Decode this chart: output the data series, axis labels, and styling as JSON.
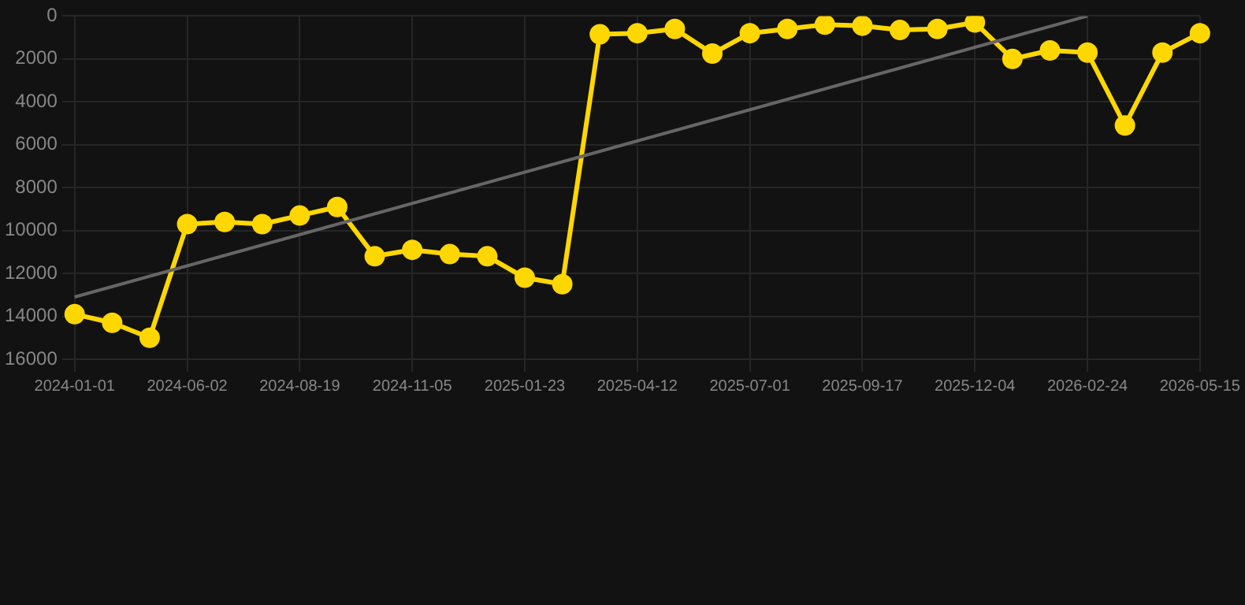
{
  "chart_data": {
    "type": "line",
    "categories": [
      "2024-01-01",
      null,
      null,
      "2024-06-02",
      null,
      null,
      "2024-08-19",
      null,
      null,
      "2024-11-05",
      null,
      null,
      "2025-01-23",
      null,
      null,
      "2025-04-12",
      null,
      null,
      "2025-07-01",
      null,
      null,
      "2025-09-17",
      null,
      null,
      "2025-12-04",
      null,
      null,
      "2026-02-24",
      null,
      null,
      "2026-05-15"
    ],
    "series": [
      {
        "color": "#ffd700",
        "marker": "circle",
        "values": [
          13900,
          14300,
          15000,
          9700,
          9600,
          9700,
          9300,
          8900,
          11200,
          10900,
          11100,
          11200,
          12200,
          12500,
          850,
          800,
          600,
          1750,
          800,
          600,
          400,
          450,
          650,
          600,
          300,
          2000,
          1600,
          1700,
          5100,
          1700,
          800
        ]
      },
      {
        "type": "line",
        "color": "#666666",
        "marker": "none",
        "values": [
          13100,
          null,
          null,
          null,
          null,
          null,
          null,
          null,
          null,
          null,
          null,
          null,
          null,
          null,
          null,
          null,
          null,
          null,
          null,
          null,
          null,
          null,
          null,
          null,
          null,
          null,
          null,
          0,
          null,
          null,
          null
        ]
      }
    ],
    "ylim": [
      16000,
      0
    ],
    "yticks": [
      0,
      2000,
      4000,
      6000,
      8000,
      10000,
      12000,
      14000,
      16000
    ],
    "grid": true,
    "legend": false,
    "line_style": "solid"
  }
}
